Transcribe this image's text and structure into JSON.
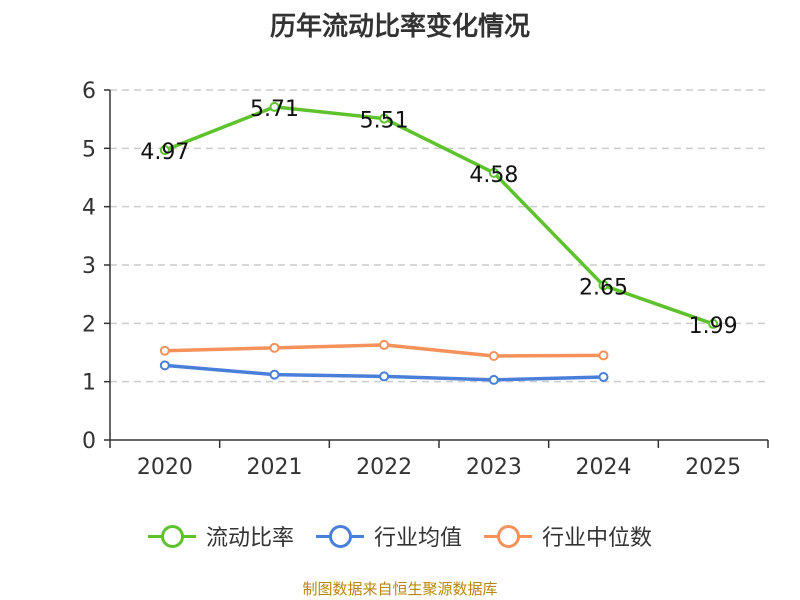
{
  "chart_data": {
    "type": "line",
    "title": "历年流动比率变化情况",
    "categories": [
      "2020",
      "2021",
      "2022",
      "2023",
      "2024",
      "2025"
    ],
    "ylim": [
      0,
      6
    ],
    "yticks": [
      "0",
      "1",
      "2",
      "3",
      "4",
      "5",
      "6"
    ],
    "grid": true,
    "legend_position": "bottom",
    "series": [
      {
        "name": "流动比率",
        "color": "#5ec22d",
        "values": [
          4.97,
          5.71,
          5.51,
          4.58,
          2.65,
          1.99
        ],
        "labels": [
          "4.97",
          "5.71",
          "5.51",
          "4.58",
          "2.65",
          "1.99"
        ]
      },
      {
        "name": "行业均值",
        "color": "#4a7fd9",
        "values": [
          1.28,
          1.12,
          1.09,
          1.03,
          1.08,
          null
        ]
      },
      {
        "name": "行业中位数",
        "color": "#f5915a",
        "values": [
          1.53,
          1.58,
          1.63,
          1.44,
          1.45,
          null
        ]
      }
    ],
    "source": "制图数据来自恒生聚源数据库"
  }
}
